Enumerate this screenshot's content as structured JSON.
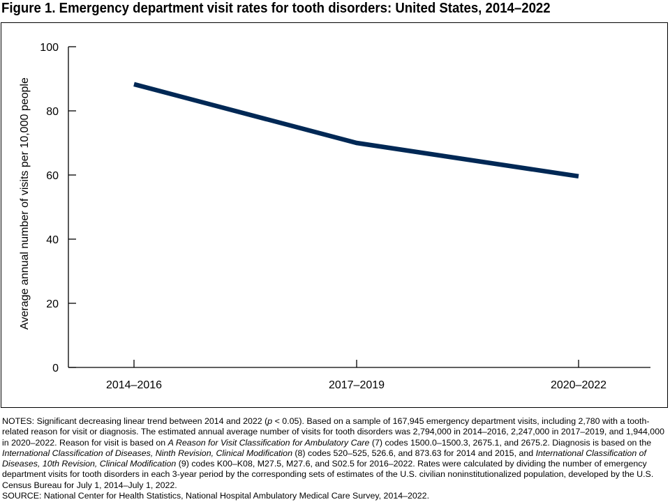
{
  "title": "Figure 1. Emergency department visit rates for tooth disorders: United States, 2014–2022",
  "chart_data": {
    "type": "line",
    "title": "Figure 1. Emergency department visit rates for tooth disorders: United States, 2014–2022",
    "xlabel": "",
    "ylabel": "Average annual number of visits per 10,000 people",
    "categories": [
      "2014–2016",
      "2017–2019",
      "2020–2022"
    ],
    "values": [
      88.3,
      70.0,
      59.6
    ],
    "ylim": [
      0,
      100
    ],
    "yticks": [
      0,
      20,
      40,
      60,
      80,
      100
    ],
    "grid": false,
    "line_color": "#002855"
  },
  "notes": [
    [
      {
        "t": "NOTES: Significant decreasing linear trend between 2014 and 2022 ("
      },
      {
        "t": "p",
        "i": true
      },
      {
        "t": " < 0.05). Based on a sample of 167,945 emergency department visits, including 2,780 with a tooth-related reason for visit or diagnosis. The estimated annual average number of visits for tooth disorders was 2,794,000 in 2014–2016, 2,247,000 in 2017–2019, and 1,944,000 in 2020–2022. Reason for visit is based on "
      },
      {
        "t": "A Reason for Visit Classification for Ambulatory Care",
        "i": true
      },
      {
        "t": " (7) codes 1500.0–1500.3, 2675.1, and 2675.2. Diagnosis is based on the "
      },
      {
        "t": "International Classification of Diseases, Ninth Revision, Clinical Modification",
        "i": true
      },
      {
        "t": " (8) codes 520–525, 526.6, and 873.63 for 2014 and 2015, and "
      },
      {
        "t": "International Classification of Diseases, 10th Revision, Clinical Modification",
        "i": true
      },
      {
        "t": " (9) codes K00–K08, M27.5, M27.6, and S02.5 for 2016–2022. Rates were calculated by dividing the number of emergency department visits for tooth disorders in each 3-year period by the corresponding sets of estimates of the U.S. civilian noninstitutionalized population, developed by the U.S. Census Bureau for July 1, 2014–July 1, 2022."
      }
    ],
    [
      {
        "t": "SOURCE: National Center for Health Statistics, National Hospital Ambulatory Medical Care Survey, 2014–2022."
      }
    ]
  ]
}
